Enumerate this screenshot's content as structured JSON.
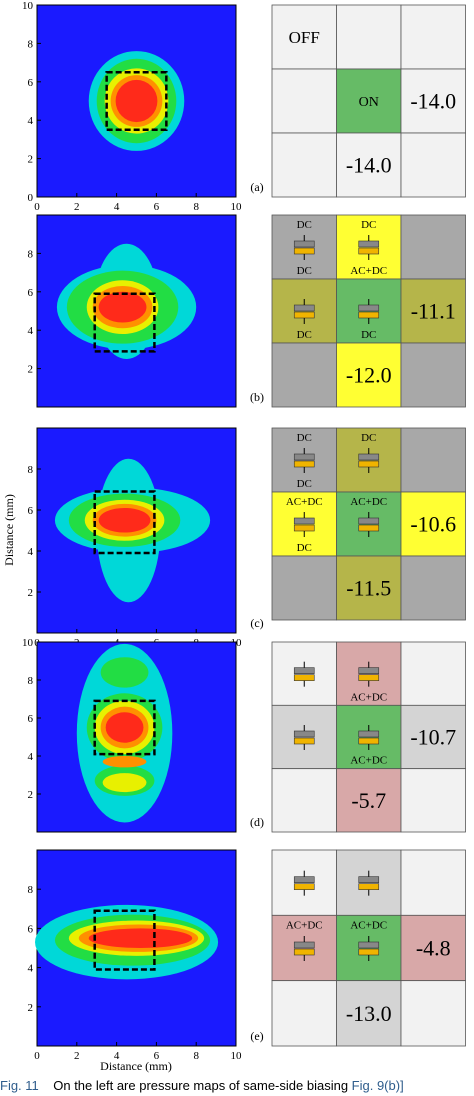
{
  "caption": {
    "figure": "Fig. 11",
    "text": "On the left are pressure maps of same-side biasing",
    "link": "Fig. 9(b)]"
  },
  "axis": {
    "ylabel": "Distance (mm)",
    "xlabel": "Distance (mm)",
    "ticks": [
      "0",
      "2",
      "4",
      "6",
      "8",
      "10"
    ],
    "yticks_small": [
      "2",
      "4",
      "6",
      "8"
    ]
  },
  "colors": {
    "background": "#1a1aff",
    "outer": "#00d8d8",
    "green": "#22dd44",
    "yellow": "#e8f000",
    "orange": "#ff9000",
    "red": "#ff2a1a",
    "grid_gray": "#a8a8a8",
    "grid_yellow": "#ffff33",
    "grid_olive": "#b5b54a",
    "grid_green": "#66bb66",
    "grid_pink": "#d8a8a8",
    "grid_lightgray": "#d4d4d4",
    "grid_verylight": "#f2f2f2",
    "icon_gold": "#f0b400",
    "icon_gray": "#888888"
  },
  "panels": [
    {
      "label": "(a)",
      "grid": [
        [
          "OFF",
          "",
          ""
        ],
        [
          "",
          "ON",
          "-14.0"
        ],
        [
          "",
          "-14.0",
          ""
        ]
      ]
    },
    {
      "label": "(b)",
      "grid_labels": {
        "top_left_top": "DC",
        "top_left_bottom": "DC",
        "top_mid_top": "DC",
        "top_mid_bottom": "AC+DC",
        "mid_left_bottom": "DC",
        "mid_mid_bottom": "DC",
        "mid_right": "-11.1",
        "bottom_mid": "-12.0"
      }
    },
    {
      "label": "(c)",
      "grid_labels": {
        "top_left_top": "DC",
        "top_left_bottom": "DC",
        "top_mid_top": "DC",
        "mid_left_top": "AC+DC",
        "mid_left_bottom": "DC",
        "mid_mid_top": "AC+DC",
        "mid_right": "-10.6",
        "bottom_mid": "-11.5"
      }
    },
    {
      "label": "(d)",
      "grid_labels": {
        "top_mid_bottom": "AC+DC",
        "mid_mid_bottom": "AC+DC",
        "mid_right": "-10.7",
        "bottom_mid": "-5.7"
      }
    },
    {
      "label": "(e)",
      "grid_labels": {
        "mid_left_top": "AC+DC",
        "mid_mid_top": "AC+DC",
        "mid_right": "-4.8",
        "bottom_mid": "-13.0"
      }
    }
  ]
}
